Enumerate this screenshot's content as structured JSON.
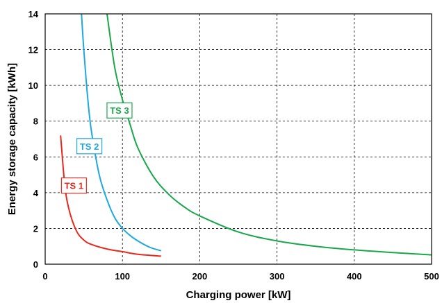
{
  "chart_data": {
    "type": "line",
    "title": "",
    "xlabel": "Charging power [kW]",
    "ylabel": "Energy storage capacity [kWh]",
    "xlim": [
      0,
      500
    ],
    "ylim": [
      0,
      14
    ],
    "xticks": [
      "0",
      "100",
      "200",
      "300",
      "400",
      "500"
    ],
    "yticks": [
      "0",
      "2",
      "4",
      "6",
      "8",
      "10",
      "12",
      "14"
    ],
    "grid": true,
    "grid_style": "dashed",
    "series": [
      {
        "name": "TS 1",
        "color": "#e8281e",
        "x": [
          20,
          25,
          30,
          40,
          50,
          60,
          80,
          100,
          120,
          150
        ],
        "y": [
          7.2,
          4.6,
          3.2,
          1.9,
          1.35,
          1.1,
          0.85,
          0.7,
          0.55,
          0.45
        ]
      },
      {
        "name": "TS 2",
        "color": "#1ea8e0",
        "x": [
          47,
          50,
          55,
          60,
          70,
          80,
          90,
          100,
          110,
          120,
          135,
          150
        ],
        "y": [
          14,
          12,
          9.3,
          7.4,
          5,
          3.6,
          2.6,
          2.0,
          1.6,
          1.3,
          0.95,
          0.75
        ]
      },
      {
        "name": "TS 3",
        "color": "#1aa64a",
        "x": [
          80,
          90,
          100,
          110,
          120,
          140,
          160,
          180,
          200,
          250,
          300,
          350,
          400,
          450,
          500
        ],
        "y": [
          14,
          11,
          9.2,
          7.8,
          6.5,
          4.9,
          3.9,
          3.2,
          2.7,
          1.8,
          1.3,
          1.0,
          0.8,
          0.65,
          0.52
        ]
      }
    ]
  }
}
